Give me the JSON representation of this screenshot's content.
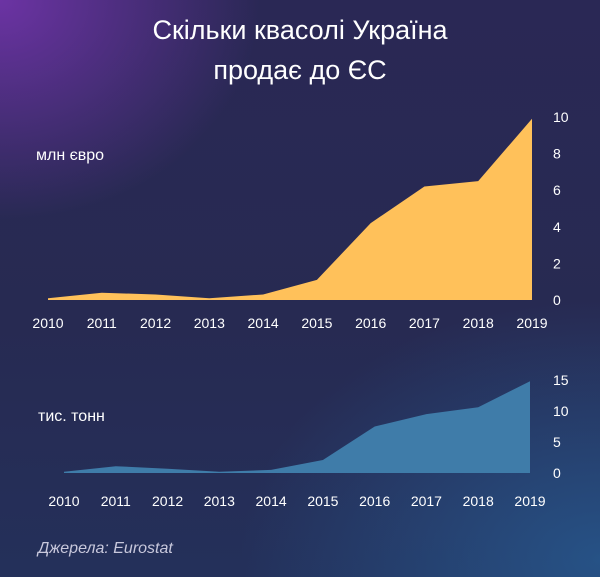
{
  "title_line1": "Скільки квасолі Україна",
  "title_line2": "продає до ЄС",
  "source": "Джерела: Eurostat",
  "chart_data": [
    {
      "type": "area",
      "ylabel": "млн євро",
      "x": [
        "2010",
        "2011",
        "2012",
        "2013",
        "2014",
        "2015",
        "2016",
        "2017",
        "2018",
        "2019"
      ],
      "values": [
        0.1,
        0.4,
        0.3,
        0.1,
        0.3,
        1.1,
        4.2,
        6.2,
        6.5,
        9.9
      ],
      "ylim": [
        0,
        10
      ],
      "yticks": [
        "0",
        "2",
        "4",
        "6",
        "8",
        "10"
      ],
      "color": "#FFC15A",
      "grid": false
    },
    {
      "type": "area",
      "ylabel": "тис. тонн",
      "x": [
        "2010",
        "2011",
        "2012",
        "2013",
        "2014",
        "2015",
        "2016",
        "2017",
        "2018",
        "2019"
      ],
      "values": [
        0.2,
        1.1,
        0.7,
        0.2,
        0.5,
        2.1,
        7.5,
        9.5,
        10.6,
        14.8
      ],
      "ylim": [
        0,
        15
      ],
      "yticks": [
        "0",
        "5",
        "10",
        "15"
      ],
      "color": "#3F7CA9",
      "grid": false
    }
  ]
}
